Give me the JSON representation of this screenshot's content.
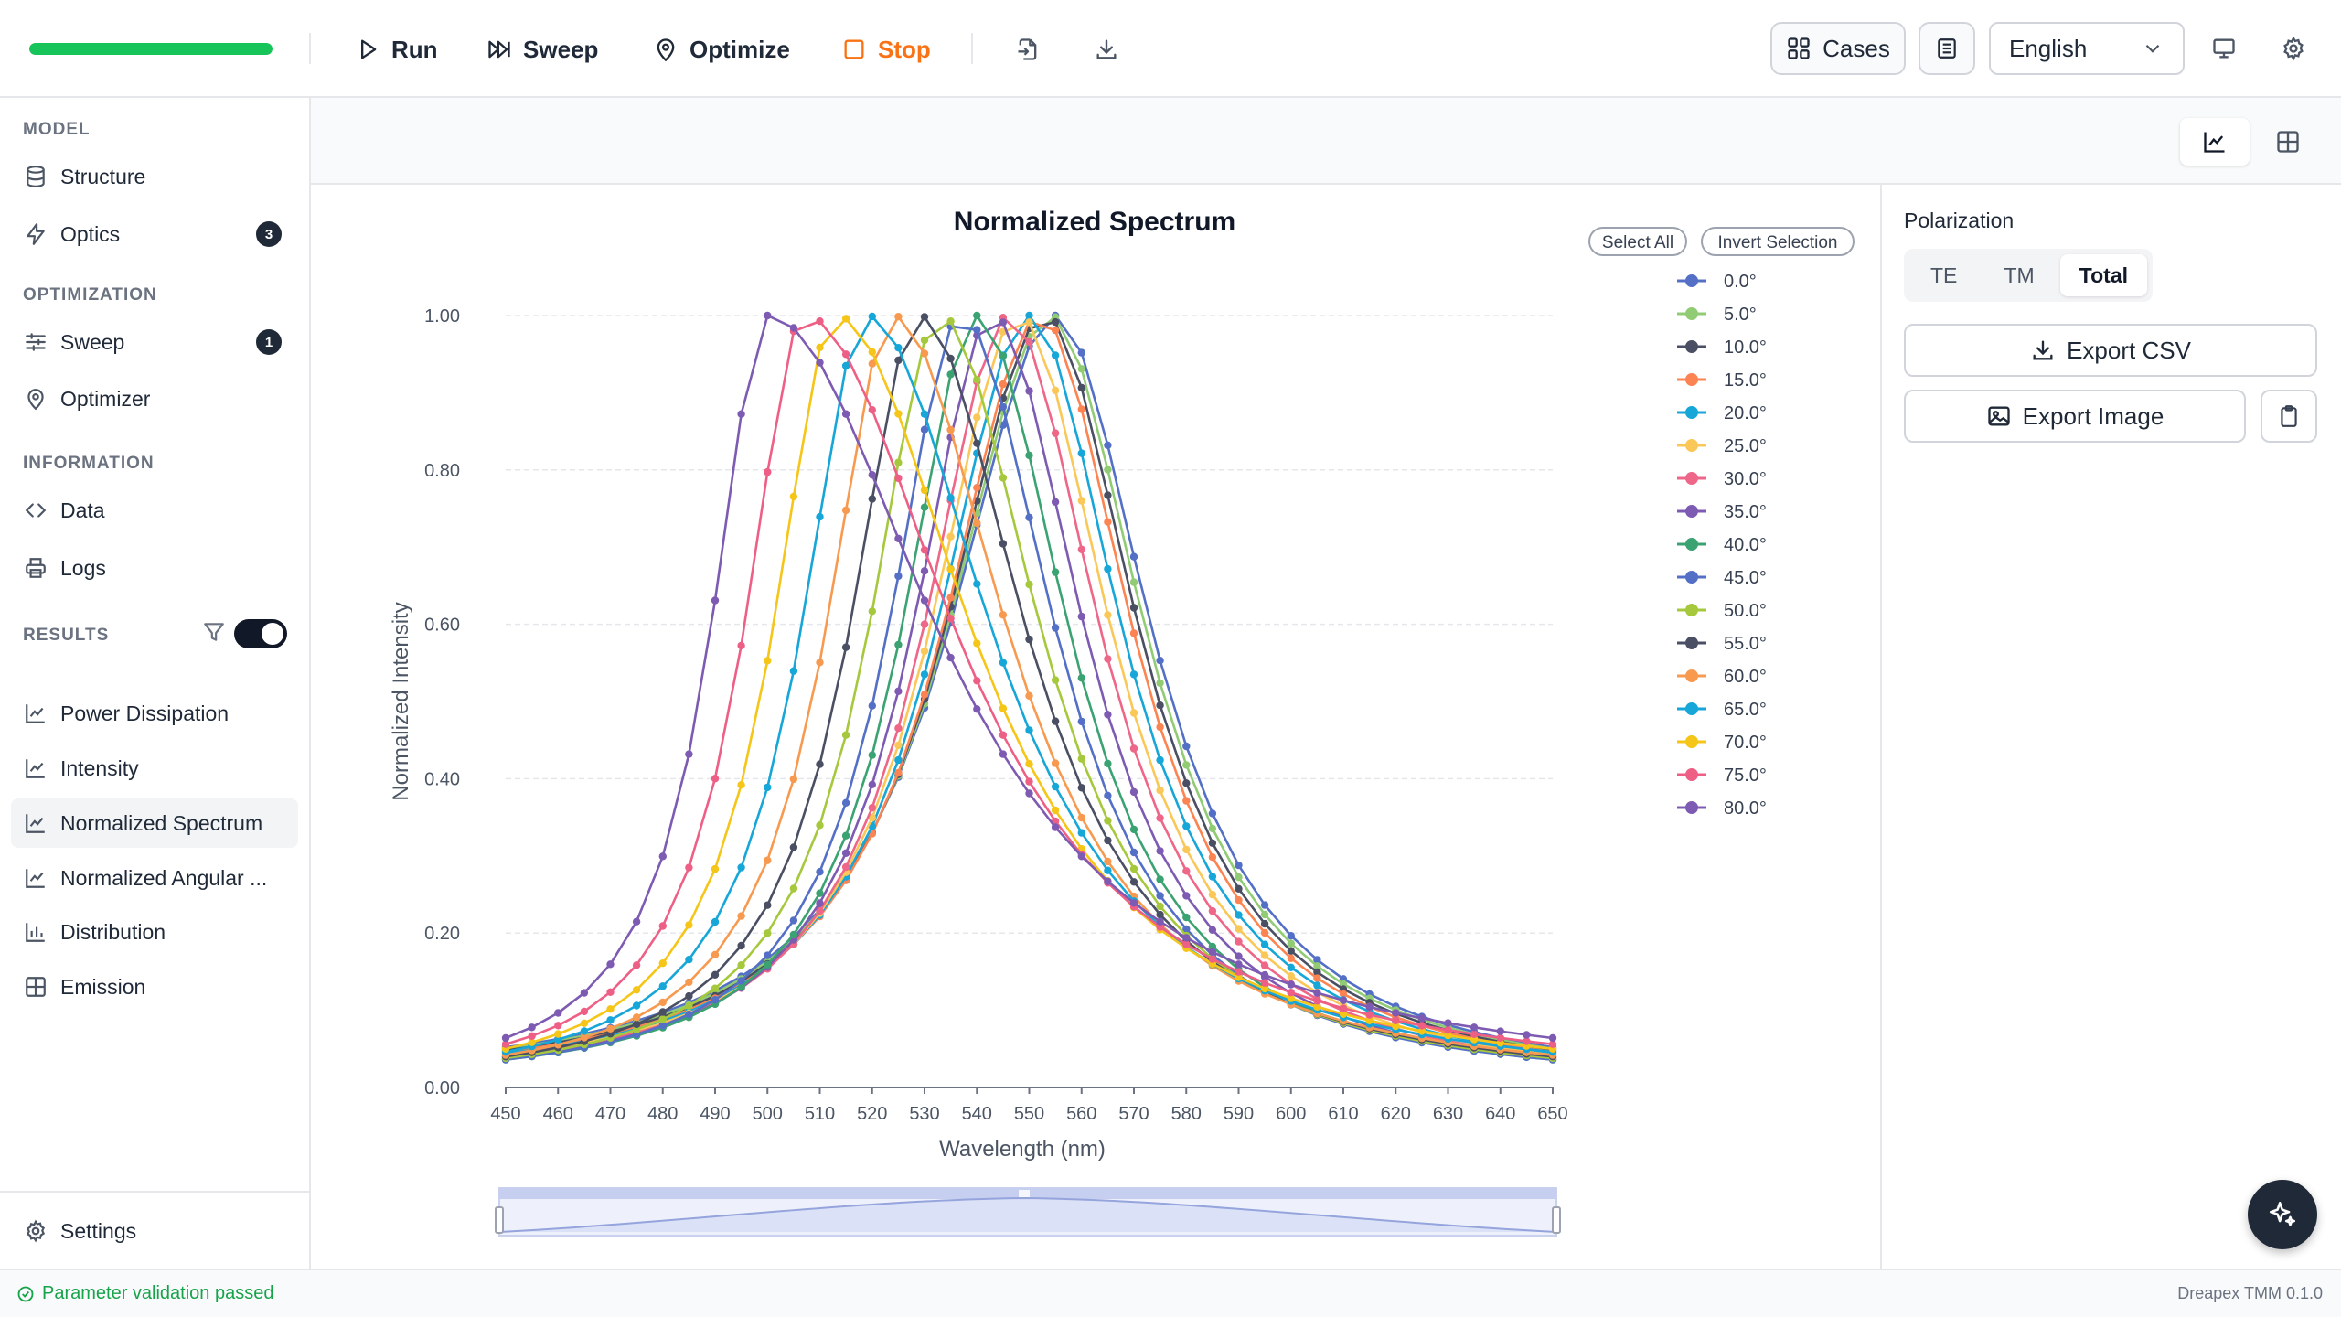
{
  "toolbar": {
    "progress": 1.0,
    "run": "Run",
    "sweep": "Sweep",
    "optimize": "Optimize",
    "stop": "Stop",
    "cases": "Cases",
    "language": "English"
  },
  "sidebar": {
    "sections": {
      "model": "MODEL",
      "optimization": "OPTIMIZATION",
      "information": "INFORMATION",
      "results": "RESULTS"
    },
    "items": {
      "structure": "Structure",
      "optics": "Optics",
      "optics_badge": "3",
      "sweep": "Sweep",
      "sweep_badge": "1",
      "optimizer": "Optimizer",
      "data": "Data",
      "logs": "Logs",
      "power_dissipation": "Power Dissipation",
      "intensity": "Intensity",
      "normalized_spectrum": "Normalized Spectrum",
      "normalized_angular": "Normalized Angular ...",
      "distribution": "Distribution",
      "emission": "Emission"
    },
    "results_filter_enabled": true,
    "settings": "Settings"
  },
  "panel": {
    "polarization_label": "Polarization",
    "pol_options": [
      "TE",
      "TM",
      "Total"
    ],
    "pol_selected": "Total",
    "export_csv": "Export CSV",
    "export_image": "Export Image"
  },
  "status": {
    "message": "Parameter validation passed",
    "version": "Dreapex TMM 0.1.0"
  },
  "legend_buttons": {
    "select_all": "Select All",
    "invert_selection": "Invert Selection"
  },
  "chart_data": {
    "type": "line",
    "title": "Normalized Spectrum",
    "xlabel": "Wavelength (nm)",
    "ylabel": "Normalized Intensity",
    "xlim": [
      450,
      650
    ],
    "ylim": [
      0,
      1
    ],
    "x_ticks": [
      450,
      460,
      470,
      480,
      490,
      500,
      510,
      520,
      530,
      540,
      550,
      560,
      570,
      580,
      590,
      600,
      610,
      620,
      630,
      640,
      650
    ],
    "y_ticks": [
      "0.00",
      "0.20",
      "0.40",
      "0.60",
      "0.80",
      "1.00"
    ],
    "x_step": 5,
    "grid": true,
    "legend_position": "right",
    "series": [
      {
        "name": "0.0°",
        "color": "#5470c6",
        "peak": 555,
        "edge": 0.052
      },
      {
        "name": "5.0°",
        "color": "#91cc75",
        "peak": 554,
        "edge": 0.05
      },
      {
        "name": "10.0°",
        "color": "#4a4f63",
        "peak": 553,
        "edge": 0.048
      },
      {
        "name": "15.0°",
        "color": "#fc8452",
        "peak": 552,
        "edge": 0.046
      },
      {
        "name": "20.0°",
        "color": "#16a6d8",
        "peak": 550,
        "edge": 0.044
      },
      {
        "name": "25.0°",
        "color": "#fac858",
        "peak": 548,
        "edge": 0.042
      },
      {
        "name": "30.0°",
        "color": "#ee6688",
        "peak": 546,
        "edge": 0.04
      },
      {
        "name": "35.0°",
        "color": "#7e5bb2",
        "peak": 543,
        "edge": 0.038
      },
      {
        "name": "40.0°",
        "color": "#3ba272",
        "peak": 540,
        "edge": 0.036
      },
      {
        "name": "45.0°",
        "color": "#5470c6",
        "peak": 537,
        "edge": 0.036
      },
      {
        "name": "50.0°",
        "color": "#a6c83c",
        "peak": 533,
        "edge": 0.038
      },
      {
        "name": "55.0°",
        "color": "#4a4f63",
        "peak": 529,
        "edge": 0.04
      },
      {
        "name": "60.0°",
        "color": "#f79a50",
        "peak": 524,
        "edge": 0.042
      },
      {
        "name": "65.0°",
        "color": "#16a6d8",
        "peak": 519,
        "edge": 0.046
      },
      {
        "name": "70.0°",
        "color": "#f5c518",
        "peak": 513,
        "edge": 0.05
      },
      {
        "name": "75.0°",
        "color": "#ee5f86",
        "peak": 507,
        "edge": 0.056
      },
      {
        "name": "80.0°",
        "color": "#7e5bb2",
        "peak": 500,
        "edge": 0.064
      }
    ]
  }
}
